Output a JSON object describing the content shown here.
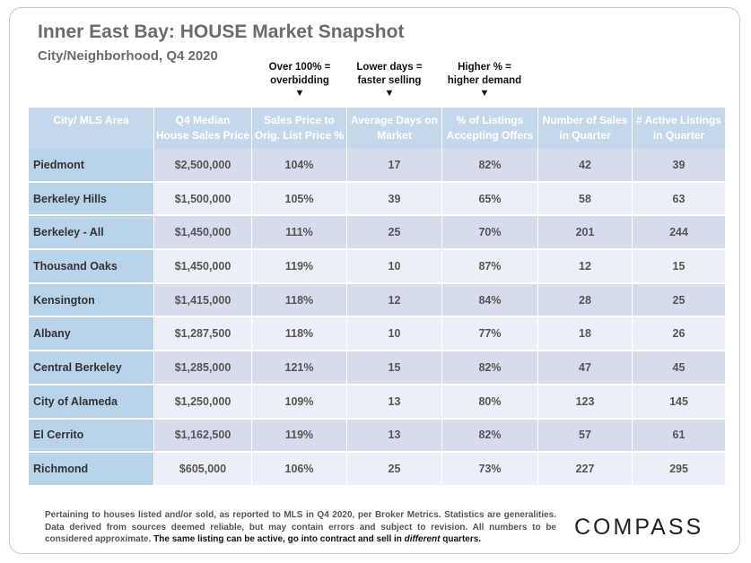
{
  "title": "Inner East Bay: HOUSE Market Snapshot",
  "subtitle": "City/Neighborhood, Q4 2020",
  "annotations": [
    {
      "line1": "Over 100% =",
      "line2": "overbidding",
      "arrow": "▼"
    },
    {
      "line1": "Lower days =",
      "line2": "faster selling",
      "arrow": "▼"
    },
    {
      "line1": "Higher % =",
      "line2": "higher demand",
      "arrow": "▼"
    }
  ],
  "headers": [
    [
      "City/ MLS Area",
      ""
    ],
    [
      "Q4 Median",
      "House Sales Price"
    ],
    [
      "Sales Price to",
      "Orig. List Price %"
    ],
    [
      "Average Days on",
      "Market"
    ],
    [
      "% of Listings",
      "Accepting Offers"
    ],
    [
      "Number of Sales",
      "in Quarter"
    ],
    [
      "# Active Listings",
      "in Quarter"
    ]
  ],
  "rows": [
    [
      "Piedmont",
      "$2,500,000",
      "104%",
      "17",
      "82%",
      "42",
      "39"
    ],
    [
      "Berkeley Hills",
      "$1,500,000",
      "105%",
      "39",
      "65%",
      "58",
      "63"
    ],
    [
      "Berkeley - All",
      "$1,450,000",
      "111%",
      "25",
      "70%",
      "201",
      "244"
    ],
    [
      "Thousand Oaks",
      "$1,450,000",
      "119%",
      "10",
      "87%",
      "12",
      "15"
    ],
    [
      "Kensington",
      "$1,415,000",
      "118%",
      "12",
      "84%",
      "28",
      "25"
    ],
    [
      "Albany",
      "$1,287,500",
      "118%",
      "10",
      "77%",
      "18",
      "26"
    ],
    [
      "Central Berkeley",
      "$1,285,000",
      "121%",
      "15",
      "82%",
      "47",
      "45"
    ],
    [
      "City of Alameda",
      "$1,250,000",
      "109%",
      "13",
      "80%",
      "123",
      "145"
    ],
    [
      "El Cerrito",
      "$1,162,500",
      "119%",
      "13",
      "82%",
      "57",
      "61"
    ],
    [
      "Richmond",
      "$605,000",
      "106%",
      "25",
      "73%",
      "227",
      "295"
    ]
  ],
  "footer": {
    "text": "Pertaining to houses listed and/or sold, as reported to MLS in Q4 2020, per Broker Metrics. Statistics are generalities. Data derived from sources deemed reliable, but may contain errors and subject to revision. All numbers to be considered approximate.",
    "strong_pre": "The same listing can be active, go into contract and sell in ",
    "strong_em": "different",
    "strong_post": " quarters."
  },
  "logo": "COMPASS"
}
